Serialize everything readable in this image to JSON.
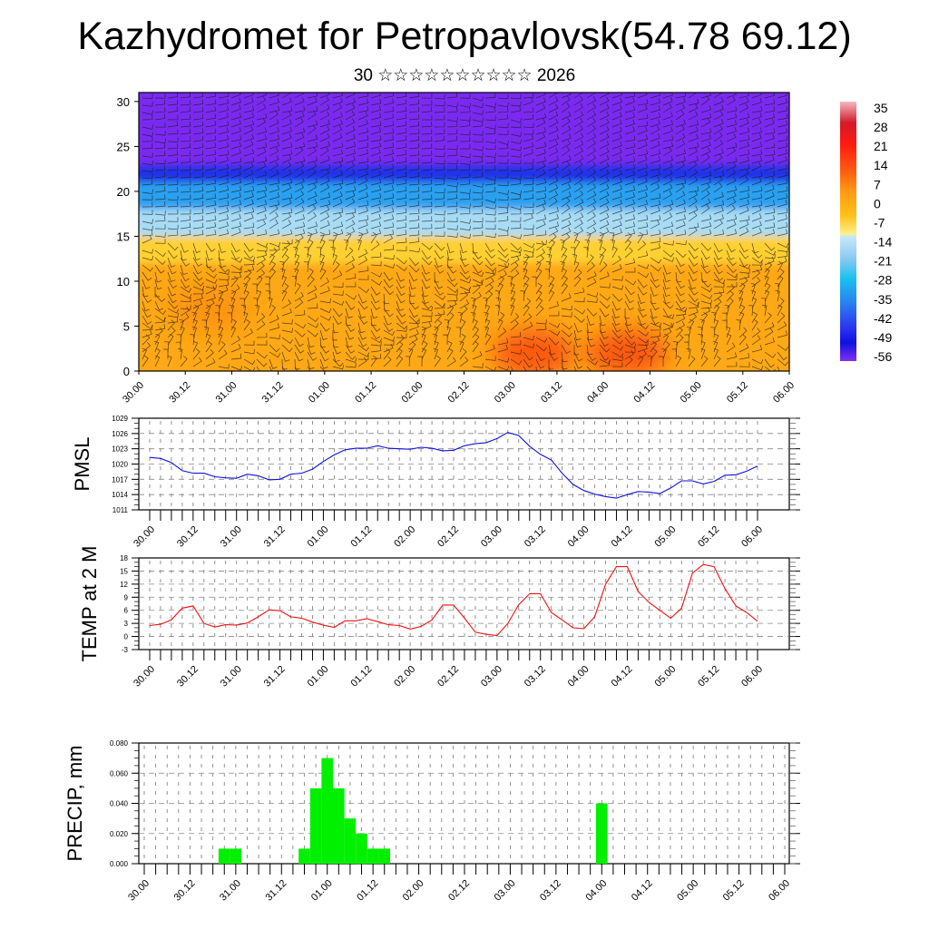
{
  "header": {
    "title": "Kazhydromet for Petropavlovsk(54.78 69.12)",
    "subtitle": "30 ☆☆☆☆☆☆☆☆☆☆ 2026"
  },
  "x_tick_labels": [
    "30.00",
    "30.12",
    "31.00",
    "31.12",
    "01.00",
    "01.12",
    "02.00",
    "02.12",
    "03.00",
    "03.12",
    "04.00",
    "04.12",
    "05.00",
    "05.12",
    "06.00"
  ],
  "chart_data": [
    {
      "type": "heatmap",
      "title": "Vertical cross-section: temperature with wind barbs",
      "xlabel": "",
      "ylabel": "",
      "x_tick_labels": [
        "30.00",
        "30.12",
        "31.00",
        "31.12",
        "01.00",
        "01.12",
        "02.00",
        "02.12",
        "03.00",
        "03.12",
        "04.00",
        "04.12",
        "05.00",
        "05.12",
        "06.00"
      ],
      "y_ticks": [
        0,
        5,
        10,
        15,
        20,
        25,
        30
      ],
      "ylim": [
        0,
        31
      ],
      "colorbar": {
        "labels": [
          "35",
          "28",
          "21",
          "14",
          "7",
          "0",
          "-7",
          "-14",
          "-21",
          "-28",
          "-35",
          "-42",
          "-49",
          "-56"
        ],
        "range": [
          -60,
          38
        ],
        "stops": [
          {
            "value": 38,
            "color": "#f4b8c0"
          },
          {
            "value": 30,
            "color": "#d21a2a"
          },
          {
            "value": 22,
            "color": "#ff1a10"
          },
          {
            "value": 12,
            "color": "#ff5a10"
          },
          {
            "value": 4,
            "color": "#ff9a14"
          },
          {
            "value": -5,
            "color": "#ffc018"
          },
          {
            "value": -12,
            "color": "#fff08a"
          },
          {
            "value": -13,
            "color": "#c8e8f8"
          },
          {
            "value": -22,
            "color": "#82c8f0"
          },
          {
            "value": -29,
            "color": "#18c0f0"
          },
          {
            "value": -38,
            "color": "#2a80f0"
          },
          {
            "value": -48,
            "color": "#2a30f0"
          },
          {
            "value": -53,
            "color": "#1010e0"
          },
          {
            "value": -60,
            "color": "#8030f0"
          }
        ]
      },
      "bands": [
        {
          "level_top": 31,
          "level_bottom": 23,
          "color": "#7a2cf0"
        },
        {
          "level_top": 23,
          "level_bottom": 21,
          "color": "#2030e8"
        },
        {
          "level_top": 21,
          "level_bottom": 18,
          "color": "#2aa0f0"
        },
        {
          "level_top": 18,
          "level_bottom": 15,
          "color": "#a8dcf4"
        },
        {
          "level_top": 15,
          "level_bottom": 12,
          "color": "#ffd030"
        },
        {
          "level_top": 12,
          "level_bottom": 0,
          "color": "#ffa818"
        }
      ],
      "warm_spots": [
        {
          "x_hours": 102,
          "level": 2,
          "color": "#ff4a10"
        },
        {
          "x_hours": 126,
          "level": 2,
          "color": "#ff4a10"
        },
        {
          "x_hours": 18,
          "level": 7,
          "color": "#ff9010"
        }
      ]
    },
    {
      "type": "line",
      "ylabel": "PMSL",
      "xlabel": "",
      "ylim": [
        1011,
        1029
      ],
      "y_ticks": [
        1011,
        1014,
        1017,
        1020,
        1023,
        1026,
        1029
      ],
      "x_step_hours": 3,
      "series": [
        {
          "name": "PMSL",
          "color": "#1010e0",
          "values": [
            1021.3,
            1021.1,
            1020.3,
            1018.7,
            1018.2,
            1018.2,
            1017.5,
            1017.3,
            1017.2,
            1018.0,
            1017.7,
            1016.9,
            1017.0,
            1018.0,
            1018.2,
            1019.0,
            1020.5,
            1021.8,
            1022.8,
            1023.1,
            1023.1,
            1023.6,
            1023.1,
            1023.0,
            1022.9,
            1023.3,
            1023.1,
            1022.6,
            1022.7,
            1023.6,
            1024.0,
            1024.2,
            1025.0,
            1026.2,
            1025.6,
            1023.5,
            1021.9,
            1020.8,
            1018.2,
            1016.0,
            1014.8,
            1014.1,
            1013.6,
            1013.3,
            1014.0,
            1014.6,
            1014.5,
            1014.2,
            1015.3,
            1016.7,
            1016.7,
            1016.1,
            1016.6,
            1017.8,
            1017.9,
            1018.6,
            1019.6
          ]
        }
      ]
    },
    {
      "type": "line",
      "ylabel": "TEMP at 2 M",
      "xlabel": "",
      "ylim": [
        -3,
        18
      ],
      "y_ticks": [
        -3,
        0,
        3,
        6,
        9,
        12,
        15,
        18
      ],
      "x_step_hours": 3,
      "series": [
        {
          "name": "TEMP at 2 M",
          "color": "#f01010",
          "values": [
            2.5,
            2.8,
            3.8,
            6.5,
            7.0,
            3.0,
            2.2,
            2.7,
            2.6,
            3.1,
            4.5,
            6.1,
            5.9,
            4.5,
            4.2,
            3.3,
            2.6,
            2.1,
            3.6,
            3.6,
            4.1,
            3.4,
            2.7,
            2.5,
            1.7,
            2.3,
            3.8,
            7.2,
            7.2,
            4.2,
            1.0,
            0.5,
            0.2,
            3.0,
            7.3,
            9.8,
            9.8,
            5.5,
            3.8,
            2.0,
            1.8,
            4.5,
            12.0,
            16.0,
            16.0,
            10.3,
            7.8,
            6.0,
            4.2,
            6.5,
            14.5,
            16.5,
            16.0,
            11.0,
            7.0,
            5.5,
            3.5
          ]
        }
      ]
    },
    {
      "type": "bar",
      "ylabel": "PRECIP, mm",
      "xlabel": "",
      "ylim": [
        0,
        0.08
      ],
      "y_ticks": [
        "0.000",
        "0.020",
        "0.040",
        "0.060",
        "0.080"
      ],
      "bar_width_hours": 3,
      "color": "#00f000",
      "bars": [
        {
          "hour": 21,
          "value": 0.01
        },
        {
          "hour": 24,
          "value": 0.01
        },
        {
          "hour": 42,
          "value": 0.01
        },
        {
          "hour": 45,
          "value": 0.05
        },
        {
          "hour": 48,
          "value": 0.07
        },
        {
          "hour": 51,
          "value": 0.05
        },
        {
          "hour": 54,
          "value": 0.03
        },
        {
          "hour": 57,
          "value": 0.02
        },
        {
          "hour": 60,
          "value": 0.01
        },
        {
          "hour": 63,
          "value": 0.01
        },
        {
          "hour": 120,
          "value": 0.04
        }
      ]
    }
  ]
}
